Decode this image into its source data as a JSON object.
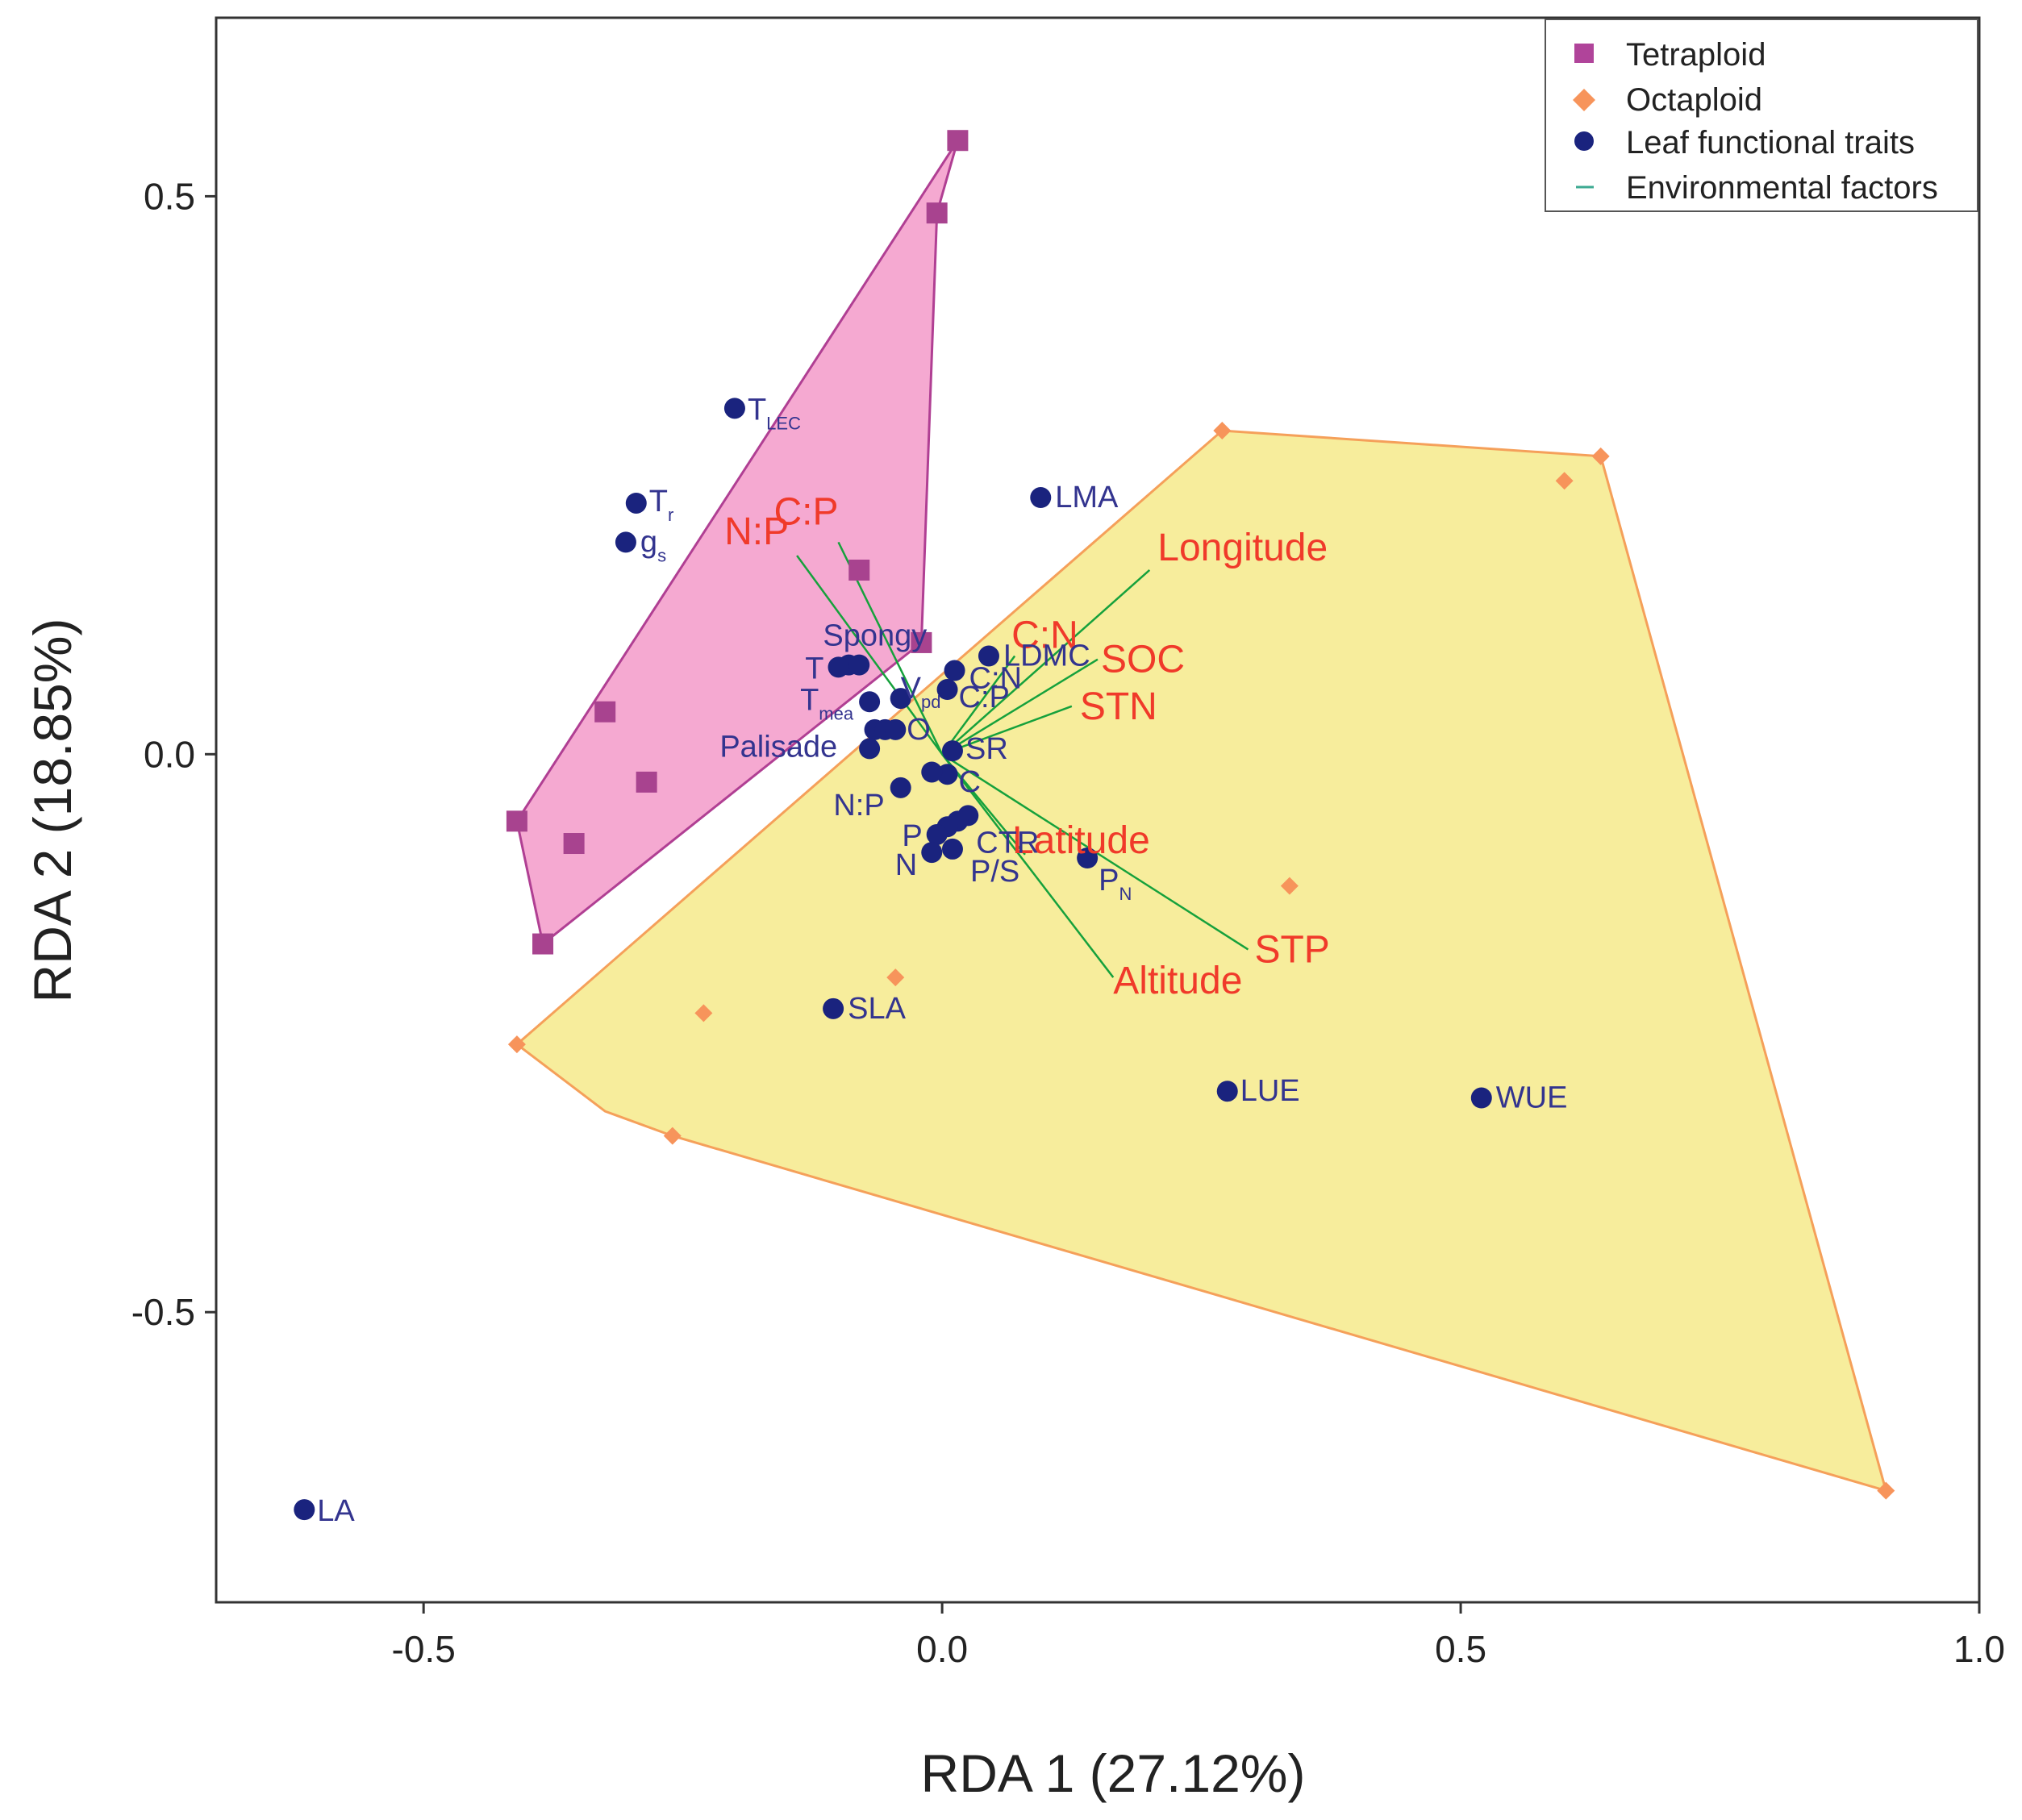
{
  "chart_data": {
    "type": "scatter",
    "title": "",
    "xlabel": "RDA 1 (27.12%)",
    "ylabel": "RDA 2 (18.85%)",
    "xlim": [
      -0.7,
      1.0
    ],
    "ylim": [
      -0.76,
      0.66
    ],
    "xticks": [
      -0.5,
      0.0,
      0.5,
      1.0
    ],
    "xtick_labels": [
      "-0.5",
      "0.0",
      "0.5",
      "1.0"
    ],
    "yticks": [
      -0.5,
      0.0,
      0.5
    ],
    "ytick_labels": [
      "-0.5",
      "0.0",
      "0.5"
    ],
    "grid": false,
    "legend": {
      "position": "top-right",
      "entries": [
        {
          "label": "Tetraploid",
          "marker": "square",
          "color": "#b0449a"
        },
        {
          "label": "Octaploid",
          "marker": "diamond",
          "color": "#f7945b"
        },
        {
          "label": "Leaf functional traits",
          "marker": "circle",
          "color": "#1a237e"
        },
        {
          "label": "Environmental factors",
          "marker": "line",
          "color": "#3daa92"
        }
      ]
    },
    "colors": {
      "tetraploid_fill": "#f5a9d1",
      "tetraploid_stroke": "#b03f93",
      "tetraploid_marker": "#a8438f",
      "octaploid_fill": "#f7ed9c",
      "octaploid_stroke": "#f5a05a",
      "octaploid_marker": "#f7945b",
      "trait_point": "#1a237e",
      "trait_text": "#33348f",
      "env_line": "#16a13c",
      "env_text": "#f03a2a"
    },
    "tetraploid_points": [
      [
        0.015,
        0.55
      ],
      [
        -0.005,
        0.485
      ],
      [
        -0.08,
        0.165
      ],
      [
        -0.02,
        0.1
      ],
      [
        -0.325,
        0.038
      ],
      [
        -0.285,
        -0.025
      ],
      [
        -0.41,
        -0.06
      ],
      [
        -0.355,
        -0.08
      ],
      [
        -0.385,
        -0.17
      ]
    ],
    "tetraploid_hull": [
      [
        0.015,
        0.55
      ],
      [
        -0.005,
        0.485
      ],
      [
        -0.02,
        0.1
      ],
      [
        -0.385,
        -0.17
      ],
      [
        -0.41,
        -0.06
      ]
    ],
    "octaploid_points": [
      [
        0.27,
        0.29
      ],
      [
        0.6,
        0.245
      ],
      [
        0.635,
        0.267
      ],
      [
        0.335,
        -0.118
      ],
      [
        -0.045,
        -0.2
      ],
      [
        -0.23,
        -0.232
      ],
      [
        -0.41,
        -0.26
      ],
      [
        -0.26,
        -0.342
      ],
      [
        0.91,
        -0.66
      ]
    ],
    "octaploid_hull": [
      [
        0.27,
        0.29
      ],
      [
        0.635,
        0.267
      ],
      [
        0.91,
        -0.66
      ],
      [
        -0.26,
        -0.342
      ],
      [
        -0.325,
        -0.32
      ],
      [
        -0.41,
        -0.26
      ]
    ],
    "traits": [
      {
        "label": "T",
        "sub": "LEC",
        "x": -0.2,
        "y": 0.31
      },
      {
        "label": "T",
        "sub": "r",
        "x": -0.295,
        "y": 0.225
      },
      {
        "label": "g",
        "sub": "s",
        "x": -0.305,
        "y": 0.19
      },
      {
        "label": "LMA",
        "sub": "",
        "x": 0.095,
        "y": 0.23
      },
      {
        "label": "Spongy",
        "sub": "",
        "x": -0.09,
        "y": 0.08
      },
      {
        "label": "",
        "sub": "",
        "x": -0.08,
        "y": 0.08
      },
      {
        "label": "T",
        "sub": "",
        "x": -0.1,
        "y": 0.078
      },
      {
        "label": "T",
        "sub": "mea",
        "x": -0.07,
        "y": 0.047
      },
      {
        "label": "V",
        "sub": "pd",
        "x": -0.04,
        "y": 0.05
      },
      {
        "label": "",
        "sub": "",
        "x": -0.065,
        "y": 0.022
      },
      {
        "label": "",
        "sub": "",
        "x": -0.055,
        "y": 0.022
      },
      {
        "label": "O",
        "sub": "",
        "x": -0.045,
        "y": 0.022
      },
      {
        "label": "Palisade",
        "sub": "",
        "x": -0.07,
        "y": 0.005
      },
      {
        "label": "LDMC",
        "sub": "",
        "x": 0.045,
        "y": 0.088
      },
      {
        "label": "C:N",
        "sub": "",
        "x": 0.012,
        "y": 0.075
      },
      {
        "label": "C:P",
        "sub": "",
        "x": 0.005,
        "y": 0.058
      },
      {
        "label": "SR",
        "sub": "",
        "x": 0.01,
        "y": 0.003
      },
      {
        "label": "C",
        "sub": "",
        "x": 0.005,
        "y": -0.018
      },
      {
        "label": "",
        "sub": "",
        "x": -0.01,
        "y": -0.016
      },
      {
        "label": "N:P",
        "sub": "",
        "x": -0.04,
        "y": -0.03
      },
      {
        "label": "CTR",
        "sub": "",
        "x": 0.025,
        "y": -0.055
      },
      {
        "label": "",
        "sub": "",
        "x": 0.015,
        "y": -0.06
      },
      {
        "label": "",
        "sub": "",
        "x": 0.005,
        "y": -0.065
      },
      {
        "label": "P",
        "sub": "",
        "x": -0.005,
        "y": -0.072
      },
      {
        "label": "P/S",
        "sub": "",
        "x": 0.01,
        "y": -0.085
      },
      {
        "label": "N",
        "sub": "",
        "x": -0.01,
        "y": -0.088
      },
      {
        "label": "P",
        "sub": "N",
        "x": 0.14,
        "y": -0.093
      },
      {
        "label": "SLA",
        "sub": "",
        "x": -0.105,
        "y": -0.228
      },
      {
        "label": "LUE",
        "sub": "",
        "x": 0.275,
        "y": -0.302
      },
      {
        "label": "WUE",
        "sub": "",
        "x": 0.52,
        "y": -0.308
      },
      {
        "label": "LA",
        "sub": "",
        "x": -0.615,
        "y": -0.677
      }
    ],
    "environmental_factors": [
      {
        "label": "Longitude",
        "x": 0.2,
        "y": 0.165
      },
      {
        "label": "C:N",
        "x": 0.07,
        "y": 0.088
      },
      {
        "label": "SOC",
        "x": 0.15,
        "y": 0.085
      },
      {
        "label": "STN",
        "x": 0.125,
        "y": 0.043
      },
      {
        "label": "C:P",
        "x": -0.1,
        "y": 0.19
      },
      {
        "label": "N:P",
        "x": -0.14,
        "y": 0.178
      },
      {
        "label": "Latitude",
        "x": 0.08,
        "y": -0.09
      },
      {
        "label": "STP",
        "x": 0.295,
        "y": -0.175
      },
      {
        "label": "Altitude",
        "x": 0.165,
        "y": -0.2
      }
    ]
  }
}
